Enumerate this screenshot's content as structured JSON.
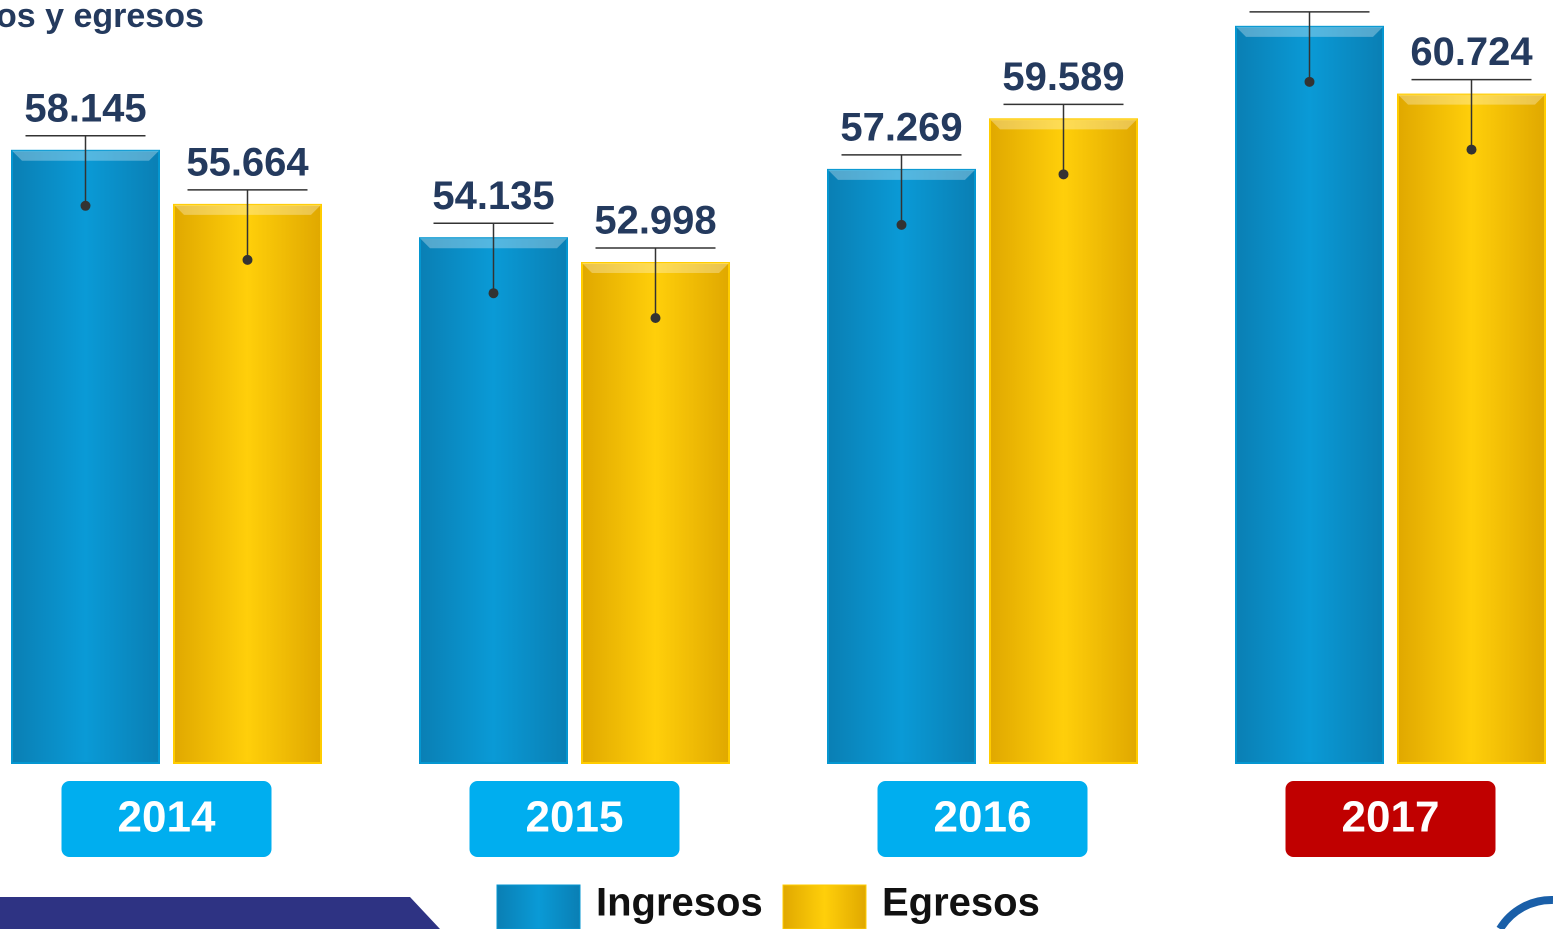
{
  "chart_data": {
    "type": "bar",
    "title": "os y egresos",
    "categories": [
      "2014",
      "2015",
      "2016",
      "2017"
    ],
    "category_colors": [
      "#00aeef",
      "#00aeef",
      "#00aeef",
      "#c00000"
    ],
    "series": [
      {
        "name": "Ingresos",
        "color": "#0596d0",
        "values": [
          58.145,
          54.135,
          57.269,
          63.832
        ]
      },
      {
        "name": "Egresos",
        "color": "#ffcc00",
        "values": [
          55.664,
          52.998,
          59.589,
          60.724
        ]
      }
    ]
  }
}
